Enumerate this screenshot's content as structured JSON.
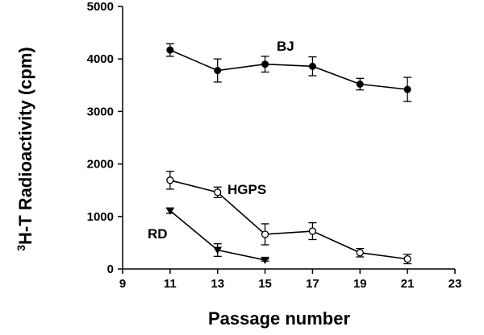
{
  "chart_data": {
    "type": "line",
    "xlabel": "Passage number",
    "ylabel_main": "H-T Radioactivity (cpm)",
    "ylabel_superscript": "3",
    "xlim": [
      9,
      23
    ],
    "ylim": [
      0,
      5000
    ],
    "xticks": [
      "9",
      "11",
      "13",
      "15",
      "17",
      "19",
      "21",
      "23"
    ],
    "yticks": [
      "0",
      "1000",
      "2000",
      "3000",
      "4000",
      "5000"
    ],
    "series": [
      {
        "name": "BJ",
        "marker": "filled-circle",
        "x": [
          11,
          13,
          15,
          17,
          19,
          21
        ],
        "y": [
          4170,
          3780,
          3900,
          3860,
          3520,
          3420
        ],
        "err": [
          120,
          220,
          150,
          180,
          110,
          230
        ]
      },
      {
        "name": "HGPS",
        "marker": "open-circle",
        "x": [
          11,
          13,
          15,
          17,
          19,
          21
        ],
        "y": [
          1690,
          1460,
          660,
          720,
          310,
          190
        ],
        "err": [
          170,
          100,
          200,
          160,
          80,
          90
        ]
      },
      {
        "name": "RD",
        "marker": "filled-triangle-down",
        "x": [
          11,
          13,
          15
        ],
        "y": [
          1110,
          360,
          170
        ],
        "err": [
          50,
          120,
          20
        ]
      }
    ]
  }
}
